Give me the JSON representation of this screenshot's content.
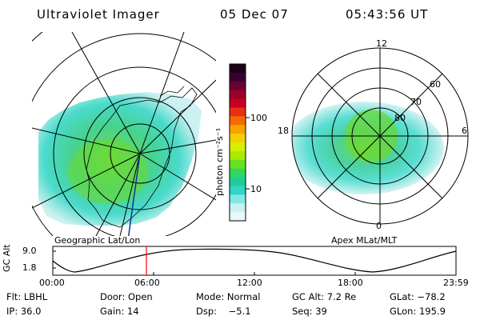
{
  "header": {
    "instrument": "Ultraviolet Imager",
    "date": "05 Dec 07",
    "time": "05:43:56 UT"
  },
  "geographic_panel": {
    "label": "Geographic Lat/Lon"
  },
  "apex_panel": {
    "label": "Apex MLat/MLT",
    "mlt_labels": [
      "12",
      "18",
      "6",
      "0"
    ],
    "lat_labels": [
      "60",
      "70",
      "80"
    ]
  },
  "colorbar": {
    "unit_label": "photon cm⁻²s⁻¹",
    "tick_labels": [
      "100",
      "10"
    ],
    "colors": [
      "#1a001a",
      "#3a0030",
      "#6a0035",
      "#9a002a",
      "#c8001f",
      "#e83010",
      "#f56a00",
      "#f8a200",
      "#f2d000",
      "#d8ee00",
      "#a6ec00",
      "#68e020",
      "#30d860",
      "#20cc9a",
      "#30d6c8",
      "#80e8e4",
      "#c8f2f2",
      "#eaf8f8"
    ]
  },
  "altitude_strip": {
    "axis_label": "GC Alt",
    "y_ticks": [
      "9.0",
      "1.8"
    ],
    "x_ticks": [
      "00:00",
      "06:00",
      "12:00",
      "18:00",
      "23:59"
    ],
    "current_marker_color": "#ff0000"
  },
  "info": {
    "filter": "Flt: LBHL",
    "door": "Door: Open",
    "mode": "Mode: Normal",
    "gc_alt": "GC Alt: 7.2 Re",
    "glat": "GLat: −78.2",
    "ip": "IP: 36.0",
    "gain": "Gain: 14",
    "dsp": "Dsp:    −5.1",
    "seq": "Seq: 39",
    "glon": "GLon: 195.9"
  }
}
